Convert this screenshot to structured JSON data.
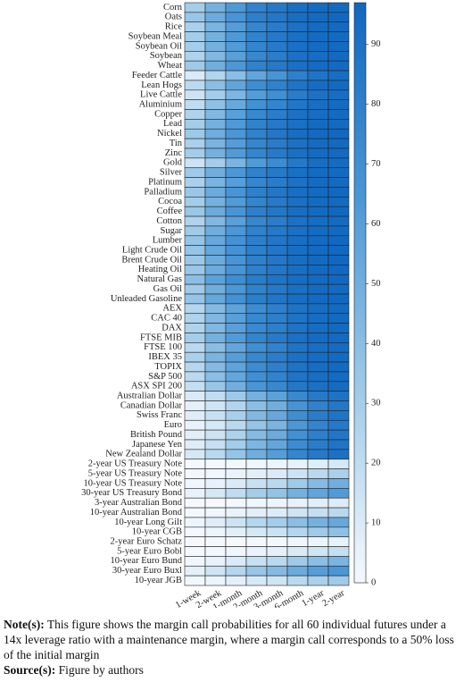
{
  "chart_data": {
    "type": "heatmap",
    "rows": [
      "Corn",
      "Oats",
      "Rice",
      "Soybean Meal",
      "Soybean Oil",
      "Soybean",
      "Wheat",
      "Feeder Cattle",
      "Lean Hogs",
      "Live Cattle",
      "Aluminium",
      "Copper",
      "Lead",
      "Nickel",
      "Tin",
      "Zinc",
      "Gold",
      "Silver",
      "Platinum",
      "Palladium",
      "Cocoa",
      "Coffee",
      "Cotton",
      "Sugar",
      "Lumber",
      "Light Crude Oil",
      "Brent Crude Oil",
      "Heating Oil",
      "Natural Gas",
      "Gas Oil",
      "Unleaded Gasoline",
      "AEX",
      "CAC 40",
      "DAX",
      "FTSE MIB",
      "FTSE 100",
      "IBEX 35",
      "TOPIX",
      "S&P 500",
      "ASX SPI 200",
      "Australian Dollar",
      "Canadian Dollar",
      "Swiss Franc",
      "Euro",
      "British Pound",
      "Japanese Yen",
      "New Zealand Dollar",
      "2-year US Treasury Note",
      "5-year US Treasury Note",
      "10-year US Treasury Note",
      "30-year US Treasury Bond",
      "3-year Australian Bond",
      "10-year Australian Bond",
      "10-year Long Gilt",
      "10-year CGB",
      "2-year Euro Schatz",
      "5-year Euro Bobl",
      "10-year Euro Bund",
      "30-year Euro Buxl",
      "10-year JGB"
    ],
    "columns": [
      "1-week",
      "2-week",
      "1-month",
      "2-month",
      "3-month",
      "6-month",
      "1-year",
      "2-year"
    ],
    "values": [
      [
        30,
        48,
        63,
        78,
        85,
        91,
        94,
        95
      ],
      [
        35,
        52,
        66,
        80,
        86,
        92,
        95,
        96
      ],
      [
        28,
        46,
        61,
        76,
        83,
        90,
        94,
        95
      ],
      [
        30,
        48,
        63,
        78,
        85,
        91,
        94,
        95
      ],
      [
        30,
        48,
        62,
        77,
        84,
        91,
        94,
        95
      ],
      [
        26,
        44,
        59,
        75,
        82,
        90,
        93,
        95
      ],
      [
        32,
        50,
        64,
        79,
        85,
        91,
        94,
        95
      ],
      [
        10,
        25,
        40,
        56,
        66,
        80,
        88,
        92
      ],
      [
        22,
        40,
        56,
        71,
        79,
        88,
        93,
        95
      ],
      [
        15,
        30,
        45,
        61,
        70,
        83,
        90,
        93
      ],
      [
        20,
        38,
        53,
        69,
        77,
        87,
        92,
        94
      ],
      [
        26,
        44,
        59,
        75,
        82,
        90,
        93,
        95
      ],
      [
        30,
        48,
        63,
        78,
        85,
        91,
        94,
        95
      ],
      [
        33,
        51,
        65,
        79,
        86,
        92,
        95,
        96
      ],
      [
        28,
        46,
        61,
        76,
        83,
        90,
        94,
        95
      ],
      [
        30,
        48,
        62,
        77,
        84,
        91,
        94,
        95
      ],
      [
        15,
        30,
        46,
        62,
        72,
        85,
        92,
        94
      ],
      [
        32,
        50,
        64,
        79,
        85,
        91,
        94,
        95
      ],
      [
        28,
        46,
        60,
        76,
        83,
        90,
        94,
        95
      ],
      [
        34,
        52,
        66,
        80,
        86,
        92,
        95,
        96
      ],
      [
        30,
        48,
        62,
        77,
        84,
        91,
        94,
        95
      ],
      [
        34,
        52,
        66,
        80,
        86,
        92,
        95,
        96
      ],
      [
        26,
        44,
        59,
        75,
        82,
        90,
        93,
        95
      ],
      [
        32,
        50,
        64,
        79,
        85,
        91,
        94,
        95
      ],
      [
        36,
        54,
        68,
        81,
        87,
        92,
        95,
        96
      ],
      [
        36,
        54,
        68,
        81,
        87,
        92,
        95,
        96
      ],
      [
        34,
        52,
        66,
        80,
        86,
        92,
        95,
        96
      ],
      [
        34,
        52,
        66,
        80,
        86,
        92,
        95,
        96
      ],
      [
        40,
        58,
        71,
        83,
        88,
        93,
        95,
        96
      ],
      [
        32,
        50,
        64,
        79,
        85,
        91,
        94,
        95
      ],
      [
        36,
        54,
        68,
        81,
        87,
        92,
        95,
        96
      ],
      [
        24,
        42,
        57,
        72,
        80,
        89,
        93,
        95
      ],
      [
        26,
        44,
        59,
        74,
        81,
        89,
        93,
        95
      ],
      [
        26,
        44,
        59,
        74,
        81,
        89,
        93,
        95
      ],
      [
        30,
        48,
        62,
        77,
        84,
        91,
        94,
        95
      ],
      [
        22,
        40,
        55,
        70,
        78,
        88,
        92,
        94
      ],
      [
        28,
        46,
        60,
        75,
        82,
        90,
        93,
        95
      ],
      [
        24,
        42,
        57,
        72,
        80,
        89,
        93,
        95
      ],
      [
        22,
        40,
        55,
        70,
        78,
        88,
        92,
        94
      ],
      [
        18,
        35,
        50,
        66,
        75,
        86,
        91,
        94
      ],
      [
        10,
        20,
        33,
        48,
        58,
        74,
        84,
        89
      ],
      [
        6,
        14,
        25,
        40,
        50,
        67,
        79,
        86
      ],
      [
        8,
        17,
        29,
        44,
        54,
        71,
        82,
        88
      ],
      [
        5,
        12,
        22,
        36,
        46,
        64,
        77,
        85
      ],
      [
        7,
        15,
        27,
        42,
        52,
        69,
        80,
        87
      ],
      [
        8,
        17,
        30,
        45,
        55,
        72,
        82,
        88
      ],
      [
        12,
        23,
        36,
        51,
        61,
        76,
        85,
        90
      ],
      [
        0,
        0,
        1,
        2,
        3,
        5,
        8,
        12
      ],
      [
        1,
        2,
        4,
        7,
        10,
        15,
        22,
        28
      ],
      [
        2,
        5,
        10,
        17,
        22,
        32,
        42,
        50
      ],
      [
        5,
        12,
        20,
        30,
        37,
        48,
        56,
        62
      ],
      [
        0,
        0,
        1,
        2,
        3,
        5,
        7,
        9
      ],
      [
        1,
        2,
        4,
        7,
        9,
        14,
        18,
        22
      ],
      [
        3,
        8,
        15,
        24,
        30,
        40,
        48,
        54
      ],
      [
        1,
        3,
        7,
        12,
        16,
        24,
        32,
        38
      ],
      [
        0,
        0,
        0,
        1,
        1,
        2,
        3,
        5
      ],
      [
        0,
        1,
        2,
        4,
        6,
        10,
        14,
        18
      ],
      [
        2,
        5,
        10,
        17,
        22,
        32,
        40,
        46
      ],
      [
        6,
        14,
        24,
        35,
        42,
        52,
        60,
        65
      ],
      [
        1,
        3,
        6,
        11,
        14,
        22,
        28,
        32
      ]
    ],
    "zlim": [
      0,
      97
    ],
    "zticks": [
      0,
      10,
      20,
      30,
      40,
      50,
      60,
      70,
      80,
      90
    ],
    "colormap": [
      "#f5f9fe",
      "#9ecae8",
      "#4a97d6",
      "#0f67c0"
    ],
    "note_label": "Note(s):",
    "note": "This figure shows the margin call probabilities for all 60 individual futures under a 14x leverage ratio with a maintenance margin, where a margin call corresponds to a 50% loss of the initial margin",
    "source_label": "Source(s):",
    "source": "Figure by authors"
  }
}
